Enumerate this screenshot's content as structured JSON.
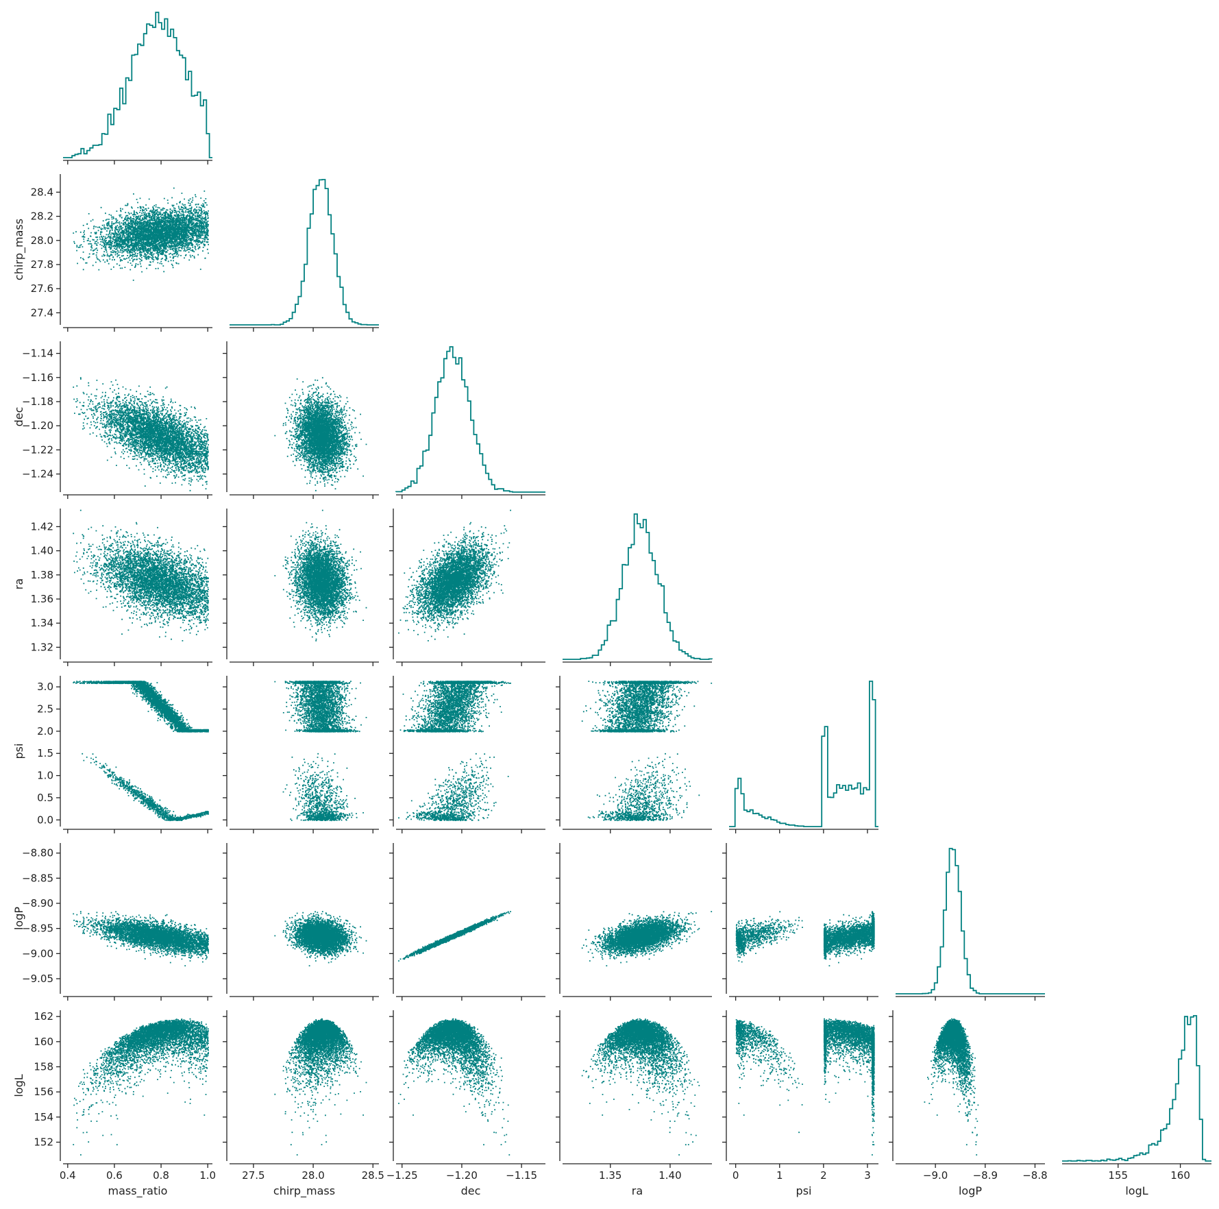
{
  "chart_data": {
    "type": "scatter",
    "layout": "corner",
    "color": "#008080",
    "text_color": "#222222",
    "grid": false,
    "diagonal_type": "step-histogram",
    "off_diagonal_type": "scatter",
    "params": [
      {
        "name": "mass_ratio",
        "label": "mass_ratio",
        "mean": 0.785,
        "sd": 0.12,
        "range": [
          0.38,
          1.02
        ],
        "ticks": [
          0.4,
          0.6,
          0.8,
          1.0
        ],
        "tick_labels": [
          "0.4",
          "0.6",
          "0.8",
          "1.0"
        ]
      },
      {
        "name": "chirp_mass",
        "label": "chirp_mass",
        "mean": 28.07,
        "sd": 0.11,
        "range": [
          27.3,
          28.55
        ],
        "ticks": [
          27.4,
          27.6,
          27.8,
          28.0,
          28.2,
          28.4
        ],
        "tick_labels": [
          "27.4",
          "27.6",
          "27.8",
          "28.0",
          "28.2",
          "28.4"
        ],
        "x_ticks": [
          27.5,
          28.0,
          28.5
        ],
        "x_tick_labels": [
          "27.5",
          "28.0",
          "28.5"
        ]
      },
      {
        "name": "dec",
        "label": "dec",
        "mean": -1.208,
        "sd": 0.0135,
        "range": [
          -1.255,
          -1.13
        ],
        "ticks": [
          -1.24,
          -1.22,
          -1.2,
          -1.18,
          -1.16,
          -1.14
        ],
        "tick_labels": [
          "−1.24",
          "−1.22",
          "−1.20",
          "−1.18",
          "−1.16",
          "−1.14"
        ],
        "x_ticks": [
          -1.25,
          -1.2,
          -1.15
        ],
        "x_tick_labels": [
          "−1.25",
          "−1.20",
          "−1.15"
        ]
      },
      {
        "name": "ra",
        "label": "ra",
        "mean": 1.375,
        "sd": 0.0145,
        "range": [
          1.31,
          1.435
        ],
        "ticks": [
          1.32,
          1.34,
          1.36,
          1.38,
          1.4,
          1.42
        ],
        "tick_labels": [
          "1.32",
          "1.34",
          "1.36",
          "1.38",
          "1.40",
          "1.42"
        ],
        "x_ticks": [
          1.35,
          1.4
        ],
        "x_tick_labels": [
          "1.35",
          "1.40"
        ]
      },
      {
        "name": "psi",
        "label": "psi",
        "range": [
          -0.15,
          3.25
        ],
        "ticks": [
          0.0,
          0.5,
          1.0,
          1.5,
          2.0,
          2.5,
          3.0
        ],
        "tick_labels": [
          "0.0",
          "0.5",
          "1.0",
          "1.5",
          "2.0",
          "2.5",
          "3.0"
        ],
        "x_ticks": [
          0,
          1,
          2,
          3
        ],
        "x_tick_labels": [
          "0",
          "1",
          "2",
          "3"
        ]
      },
      {
        "name": "logP",
        "label": "logP",
        "mean": -8.965,
        "sd": 0.025,
        "range": [
          -9.08,
          -8.78
        ],
        "ticks": [
          -9.05,
          -9.0,
          -8.95,
          -8.9,
          -8.85,
          -8.8
        ],
        "tick_labels": [
          "−9.05",
          "−9.00",
          "−8.95",
          "−8.90",
          "−8.85",
          "−8.80"
        ],
        "x_ticks": [
          -9.0,
          -8.9,
          -8.8
        ],
        "x_tick_labels": [
          "−9.0",
          "−8.9",
          "−8.8"
        ]
      },
      {
        "name": "logL",
        "label": "logL",
        "range": [
          150.5,
          162.5
        ],
        "ticks": [
          152,
          154,
          156,
          158,
          160,
          162
        ],
        "tick_labels": [
          "152",
          "154",
          "156",
          "158",
          "160",
          "162"
        ],
        "x_ticks": [
          155,
          160
        ],
        "x_tick_labels": [
          "155",
          "160"
        ]
      }
    ],
    "samples_shown": 5000,
    "psi_mode_fraction_high": 0.78,
    "psi_high_mode": [
      2.05,
      3.14
    ],
    "psi_low_mode": [
      0.0,
      1.7
    ]
  }
}
